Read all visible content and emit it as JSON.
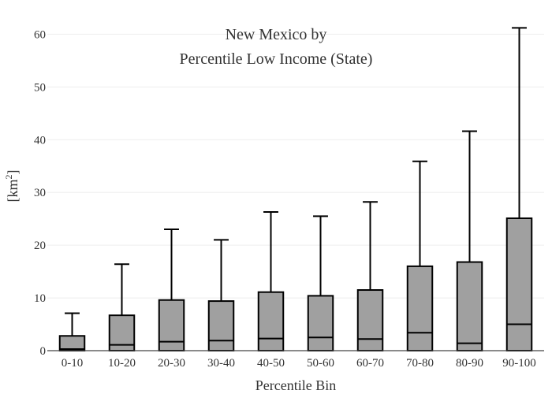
{
  "chart_data": {
    "type": "box",
    "title_lines": [
      "New Mexico  by",
      "Percentile Low Income (State)"
    ],
    "xlabel": "Percentile Bin",
    "ylabel_main": "[km",
    "ylabel_sup": "2",
    "ylabel_end": "]",
    "ylim": [
      0,
      62
    ],
    "yticks": [
      0,
      10,
      20,
      30,
      40,
      50,
      60
    ],
    "ytick_labels": [
      "0",
      "10",
      "20",
      "30",
      "40",
      "50",
      "60"
    ],
    "grid": true,
    "box_color": "#a0a0a0",
    "line_color": "#000000",
    "categories": [
      "0-10",
      "10-20",
      "20-30",
      "30-40",
      "40-50",
      "50-60",
      "60-70",
      "70-80",
      "80-90",
      "90-100"
    ],
    "boxes": [
      {
        "min": 0,
        "q1": 0,
        "median": 0.3,
        "q3": 2.8,
        "max": 7.1
      },
      {
        "min": 0,
        "q1": 0,
        "median": 1.1,
        "q3": 6.7,
        "max": 16.4
      },
      {
        "min": 0,
        "q1": 0,
        "median": 1.7,
        "q3": 9.6,
        "max": 23.0
      },
      {
        "min": 0,
        "q1": 0,
        "median": 1.9,
        "q3": 9.4,
        "max": 21.0
      },
      {
        "min": 0,
        "q1": 0,
        "median": 2.3,
        "q3": 11.1,
        "max": 26.3
      },
      {
        "min": 0,
        "q1": 0,
        "median": 2.5,
        "q3": 10.4,
        "max": 25.5
      },
      {
        "min": 0,
        "q1": 0,
        "median": 2.2,
        "q3": 11.5,
        "max": 28.2
      },
      {
        "min": 0,
        "q1": 0,
        "median": 3.4,
        "q3": 16.0,
        "max": 35.9
      },
      {
        "min": 0,
        "q1": 0,
        "median": 1.4,
        "q3": 16.8,
        "max": 41.6
      },
      {
        "min": 0,
        "q1": 0,
        "median": 5.0,
        "q3": 25.1,
        "max": 61.2
      }
    ]
  }
}
